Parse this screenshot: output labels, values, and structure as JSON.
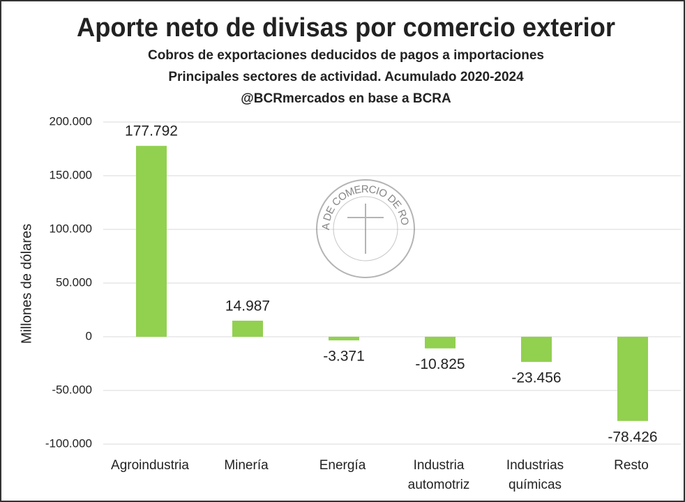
{
  "chart_data": {
    "type": "bar",
    "title": "Aporte neto de divisas por comercio exterior",
    "subtitle": [
      "Cobros de exportaciones deducidos de pagos a importaciones",
      "Principales sectores de actividad. Acumulado 2020-2024",
      "@BCRmercados en base a BCRA"
    ],
    "watermark": "BOLSA DE COMERCIO DE ROSARIO",
    "y_label": "Millones de dólares",
    "categories": [
      "Agroindustria",
      "Minería",
      "Energía",
      "Industria automotriz",
      "Industrias químicas",
      "Resto"
    ],
    "values": [
      177792,
      14987,
      -3371,
      -10825,
      -23456,
      -78426
    ],
    "value_labels": [
      "177.792",
      "14.987",
      "-3.371",
      "-10.825",
      "-23.456",
      "-78.426"
    ],
    "color": "#92d050",
    "ylim": [
      -100000,
      200000
    ],
    "yticks": [
      {
        "value": -100000,
        "label": "-100.000"
      },
      {
        "value": -50000,
        "label": "-50.000"
      },
      0,
      {
        "value": 50000,
        "label": "50.000"
      },
      {
        "value": 100000,
        "label": "100.000"
      },
      {
        "value": 150000,
        "label": "150.000"
      },
      {
        "value": 200000,
        "label": "200.000"
      }
    ],
    "grid": true
  }
}
